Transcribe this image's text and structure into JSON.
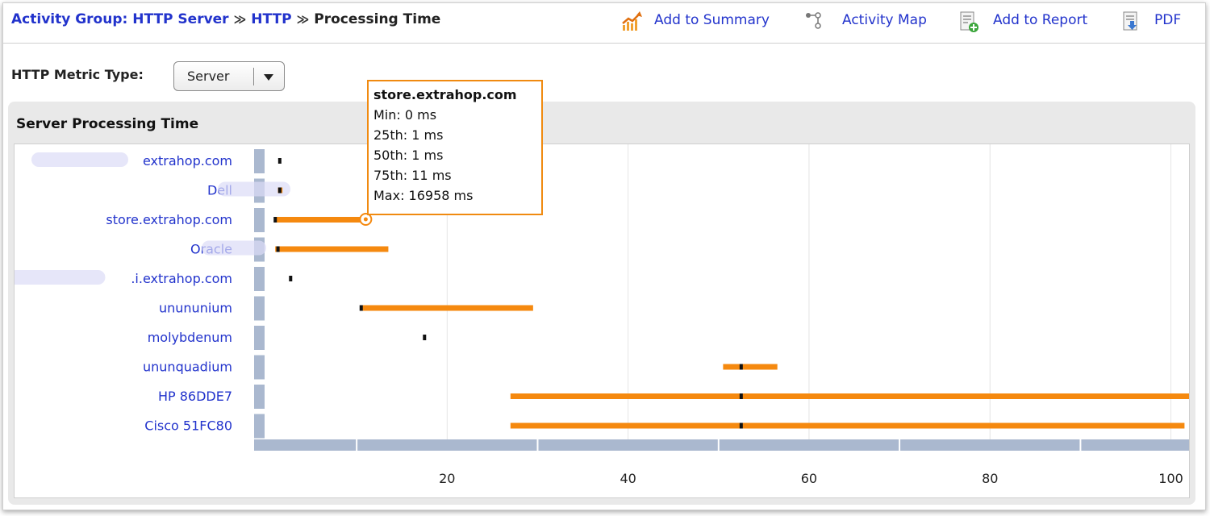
{
  "breadcrumb": {
    "items": [
      "Activity Group: HTTP Server",
      "HTTP"
    ],
    "separator": "≫",
    "current": "Processing Time"
  },
  "actions": [
    {
      "label": "Add to Summary",
      "icon": "summary-chart-icon"
    },
    {
      "label": "Activity Map",
      "icon": "activity-map-icon"
    },
    {
      "label": "Add to Report",
      "icon": "add-report-icon"
    },
    {
      "label": "PDF",
      "icon": "pdf-icon"
    }
  ],
  "metric_type": {
    "label": "HTTP Metric Type:",
    "selected": "Server"
  },
  "panel": {
    "title": "Server Processing Time"
  },
  "tooltip": {
    "title": "store.extrahop.com",
    "lines": [
      "Min: 0 ms",
      "25th: 1 ms",
      "50th: 1 ms",
      "75th: 11 ms",
      "Max: 16958 ms"
    ]
  },
  "colors": {
    "bar": "#f5890f",
    "median": "#111111",
    "axis": "#aab8cf",
    "link": "#2233cc",
    "grid": "#e4e4e4"
  },
  "chart_data": {
    "type": "box-range",
    "xlim": [
      0,
      102
    ],
    "x_ticks": [
      20,
      40,
      60,
      80,
      100
    ],
    "rows": [
      {
        "label": "extrahop.com",
        "q25": 1.5,
        "median": 1.5,
        "q75": 1.5,
        "blurred_prefix": true
      },
      {
        "label": "Dell",
        "q25": 1.3,
        "median": 1.5,
        "q75": 1.8,
        "blurred_suffix": true
      },
      {
        "label": "store.extrahop.com",
        "q25": 1,
        "median": 1,
        "q75": 11,
        "highlight": true
      },
      {
        "label": "Oracle",
        "q25": 1,
        "median": 1.3,
        "q75": 13.5,
        "blurred_suffix": true
      },
      {
        "label": ".i.extrahop.com",
        "q25": 2.7,
        "median": 2.7,
        "q75": 2.7,
        "blurred_prefix": true
      },
      {
        "label": "unununium",
        "q25": 10.5,
        "median": 10.5,
        "q75": 29.5
      },
      {
        "label": "molybdenum",
        "q25": 17.5,
        "median": 17.5,
        "q75": 17.5
      },
      {
        "label": "ununquadium",
        "q25": 50.5,
        "median": 52.5,
        "q75": 56.5
      },
      {
        "label": "HP 86DDE7",
        "q25": 27,
        "median": 52.5,
        "q75": 102
      },
      {
        "label": "Cisco 51FC80",
        "q25": 27,
        "median": 52.5,
        "q75": 101.5
      }
    ]
  }
}
